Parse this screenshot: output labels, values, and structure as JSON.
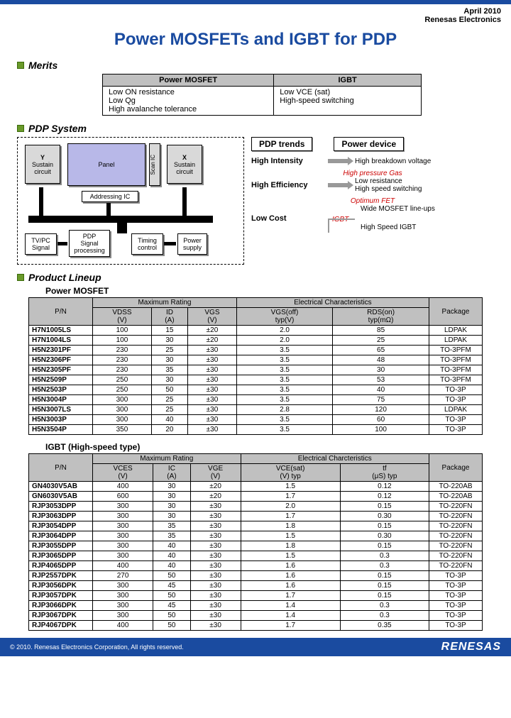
{
  "header": {
    "date": "April 2010",
    "company": "Renesas Electronics"
  },
  "title": "Power MOSFETs and IGBT for PDP",
  "sections": {
    "merits": "Merits",
    "pdp": "PDP System",
    "lineup": "Product Lineup"
  },
  "merits": {
    "cols": [
      "Power MOSFET",
      "IGBT"
    ],
    "rows": [
      [
        "Low ON resistance\nLow Qg\nHigh avalanche tolerance",
        "Low VCE (sat)\nHigh-speed switching"
      ]
    ]
  },
  "diagram": {
    "y": "Y",
    "sustain": "Sustain\ncircuit",
    "panel": "Panel",
    "scanic": "Scan IC",
    "x": "X",
    "addressing": "Addressing IC",
    "tvpc": "TV/PC\nSignal",
    "pdp_proc": "PDP\nSignal\nprocessing",
    "timing": "Timing\ncontrol",
    "power": "Power\nsupply"
  },
  "trends": {
    "h1": "PDP trends",
    "h2": "Power device",
    "rows": [
      {
        "l": "High Intensity",
        "r": "High breakdown voltage",
        "note": "High pressure Gas",
        "note_color": "#c00"
      },
      {
        "l": "High Efficiency",
        "r": "Low resistance\nHigh speed switching"
      },
      {
        "l": "Low Cost",
        "r": "Wide MOSFET line-ups",
        "r2": "High Speed IGBT",
        "opt": "Optimum FET",
        "igbt": "IGBT"
      }
    ]
  },
  "mosfet": {
    "title": "Power MOSFET",
    "groups": [
      "Maximum Rating",
      "Electrical Characteristics"
    ],
    "cols": [
      "P/N",
      "VDSS\n(V)",
      "ID\n(A)",
      "VGS\n(V)",
      "VGS(off)\ntyp(V)",
      "RDS(on)\ntyp(mΩ)",
      "Package"
    ],
    "rows": [
      [
        "H7N1005LS",
        "100",
        "15",
        "±20",
        "2.0",
        "85",
        "LDPAK"
      ],
      [
        "H7N1004LS",
        "100",
        "30",
        "±20",
        "2.0",
        "25",
        "LDPAK"
      ],
      [
        "H5N2301PF",
        "230",
        "25",
        "±30",
        "3.5",
        "65",
        "TO-3PFM"
      ],
      [
        "H5N2306PF",
        "230",
        "30",
        "±30",
        "3.5",
        "48",
        "TO-3PFM"
      ],
      [
        "H5N2305PF",
        "230",
        "35",
        "±30",
        "3.5",
        "30",
        "TO-3PFM"
      ],
      [
        "H5N2509P",
        "250",
        "30",
        "±30",
        "3.5",
        "53",
        "TO-3PFM"
      ],
      [
        "H5N2503P",
        "250",
        "50",
        "±30",
        "3.5",
        "40",
        "TO-3P"
      ],
      [
        "H5N3004P",
        "300",
        "25",
        "±30",
        "3.5",
        "75",
        "TO-3P"
      ],
      [
        "H5N3007LS",
        "300",
        "25",
        "±30",
        "2.8",
        "120",
        "LDPAK"
      ],
      [
        "H5N3003P",
        "300",
        "40",
        "±30",
        "3.5",
        "60",
        "TO-3P"
      ],
      [
        "H5N3504P",
        "350",
        "20",
        "±30",
        "3.5",
        "100",
        "TO-3P"
      ]
    ]
  },
  "igbt": {
    "title": "IGBT (High-speed type)",
    "groups": [
      "Maximum Rating",
      "Electrical Charcteristics"
    ],
    "cols": [
      "P/N",
      "VCES\n(V)",
      "IC\n(A)",
      "VGE\n(V)",
      "VCE(sat)\n(V) typ",
      "tf\n(μS) typ",
      "Package"
    ],
    "rows": [
      [
        "GN4030V5AB",
        "400",
        "30",
        "±20",
        "1.5",
        "0.12",
        "TO-220AB"
      ],
      [
        "GN6030V5AB",
        "600",
        "30",
        "±20",
        "1.7",
        "0.12",
        "TO-220AB"
      ],
      [
        "RJP3053DPP",
        "300",
        "30",
        "±30",
        "2.0",
        "0.15",
        "TO-220FN"
      ],
      [
        "RJP3063DPP",
        "300",
        "30",
        "±30",
        "1.7",
        "0.30",
        "TO-220FN"
      ],
      [
        "RJP3054DPP",
        "300",
        "35",
        "±30",
        "1.8",
        "0.15",
        "TO-220FN"
      ],
      [
        "RJP3064DPP",
        "300",
        "35",
        "±30",
        "1.5",
        "0.30",
        "TO-220FN"
      ],
      [
        "RJP3055DPP",
        "300",
        "40",
        "±30",
        "1.8",
        "0.15",
        "TO-220FN"
      ],
      [
        "RJP3065DPP",
        "300",
        "40",
        "±30",
        "1.5",
        "0.3",
        "TO-220FN"
      ],
      [
        "RJP4065DPP",
        "400",
        "40",
        "±30",
        "1.6",
        "0.3",
        "TO-220FN"
      ],
      [
        "RJP2557DPK",
        "270",
        "50",
        "±30",
        "1.6",
        "0.15",
        "TO-3P"
      ],
      [
        "RJP3056DPK",
        "300",
        "45",
        "±30",
        "1.6",
        "0.15",
        "TO-3P"
      ],
      [
        "RJP3057DPK",
        "300",
        "50",
        "±30",
        "1.7",
        "0.15",
        "TO-3P"
      ],
      [
        "RJP3066DPK",
        "300",
        "45",
        "±30",
        "1.4",
        "0.3",
        "TO-3P"
      ],
      [
        "RJP3067DPK",
        "300",
        "50",
        "±30",
        "1.4",
        "0.3",
        "TO-3P"
      ],
      [
        "RJP4067DPK",
        "400",
        "50",
        "±30",
        "1.7",
        "0.35",
        "TO-3P"
      ]
    ]
  },
  "footer": {
    "copy": "© 2010. Renesas Electronics Corporation, All rights reserved.",
    "logo": "RENESAS"
  }
}
